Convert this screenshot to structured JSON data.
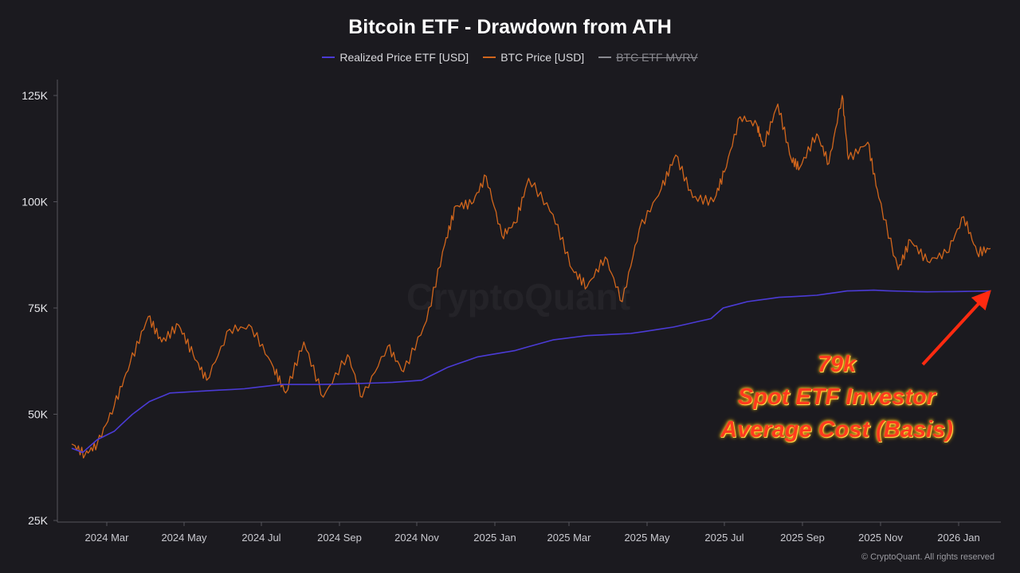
{
  "chart_data": {
    "type": "line",
    "title": "Bitcoin ETF - Drawdown from ATH",
    "legend": [
      {
        "name": "Realized Price ETF [USD]",
        "color": "#4b3bd6",
        "disabled": false
      },
      {
        "name": "BTC Price [USD]",
        "color": "#d2661c",
        "disabled": false
      },
      {
        "name": "BTC ETF MVRV",
        "color": "#8a8a90",
        "disabled": true
      }
    ],
    "x_labels": [
      "2024 Mar",
      "2024 May",
      "2024 Jul",
      "2024 Sep",
      "2024 Nov",
      "2025 Jan",
      "2025 Mar",
      "2025 May",
      "2025 Jul",
      "2025 Sep",
      "2025 Nov",
      "2026 Jan"
    ],
    "x_range": [
      "2024-01-11",
      "2026-02-05"
    ],
    "y_ticks": [
      "125K",
      "100K",
      "75K",
      "50K",
      "25K"
    ],
    "ylim": [
      25000,
      125000
    ],
    "series": [
      {
        "name": "Realized Price ETF [USD]",
        "color": "#4b3bd6",
        "points": [
          [
            "2024-01-11",
            42000
          ],
          [
            "2024-01-20",
            41000
          ],
          [
            "2024-02-01",
            44000
          ],
          [
            "2024-02-15",
            46000
          ],
          [
            "2024-03-01",
            50000
          ],
          [
            "2024-03-15",
            53000
          ],
          [
            "2024-04-01",
            55000
          ],
          [
            "2024-05-01",
            55500
          ],
          [
            "2024-06-01",
            56000
          ],
          [
            "2024-07-01",
            57000
          ],
          [
            "2024-08-01",
            57000
          ],
          [
            "2024-09-01",
            57200
          ],
          [
            "2024-10-01",
            57500
          ],
          [
            "2024-10-25",
            58000
          ],
          [
            "2024-11-15",
            61000
          ],
          [
            "2024-12-10",
            63500
          ],
          [
            "2025-01-10",
            65000
          ],
          [
            "2025-02-10",
            67500
          ],
          [
            "2025-03-10",
            68500
          ],
          [
            "2025-04-15",
            69000
          ],
          [
            "2025-05-20",
            70500
          ],
          [
            "2025-06-20",
            72500
          ],
          [
            "2025-06-30",
            75000
          ],
          [
            "2025-07-20",
            76500
          ],
          [
            "2025-08-15",
            77500
          ],
          [
            "2025-09-15",
            78000
          ],
          [
            "2025-10-10",
            79000
          ],
          [
            "2025-11-01",
            79200
          ],
          [
            "2025-11-15",
            79000
          ],
          [
            "2025-12-15",
            78800
          ],
          [
            "2026-01-15",
            78900
          ],
          [
            "2026-02-05",
            79000
          ]
        ]
      },
      {
        "name": "BTC Price [USD]",
        "color": "#d2661c",
        "points": [
          [
            "2024-01-11",
            43000
          ],
          [
            "2024-01-22",
            40500
          ],
          [
            "2024-02-01",
            43000
          ],
          [
            "2024-02-15",
            52000
          ],
          [
            "2024-02-28",
            62000
          ],
          [
            "2024-03-14",
            73000
          ],
          [
            "2024-03-25",
            67000
          ],
          [
            "2024-04-08",
            71000
          ],
          [
            "2024-04-20",
            64000
          ],
          [
            "2024-05-01",
            58000
          ],
          [
            "2024-05-20",
            70000
          ],
          [
            "2024-06-07",
            70500
          ],
          [
            "2024-06-25",
            61000
          ],
          [
            "2024-07-05",
            55000
          ],
          [
            "2024-07-20",
            67000
          ],
          [
            "2024-08-05",
            54000
          ],
          [
            "2024-08-25",
            64000
          ],
          [
            "2024-09-06",
            54000
          ],
          [
            "2024-09-27",
            66000
          ],
          [
            "2024-10-10",
            60000
          ],
          [
            "2024-10-29",
            72000
          ],
          [
            "2024-11-13",
            90000
          ],
          [
            "2024-11-22",
            99000
          ],
          [
            "2024-12-05",
            99500
          ],
          [
            "2024-12-17",
            106000
          ],
          [
            "2024-12-30",
            92000
          ],
          [
            "2025-01-10",
            95000
          ],
          [
            "2025-01-21",
            105500
          ],
          [
            "2025-02-10",
            97000
          ],
          [
            "2025-02-26",
            84000
          ],
          [
            "2025-03-10",
            80000
          ],
          [
            "2025-03-25",
            87000
          ],
          [
            "2025-04-08",
            76500
          ],
          [
            "2025-04-22",
            93500
          ],
          [
            "2025-05-10",
            103000
          ],
          [
            "2025-05-22",
            111000
          ],
          [
            "2025-06-05",
            101000
          ],
          [
            "2025-06-22",
            100000
          ],
          [
            "2025-07-01",
            107000
          ],
          [
            "2025-07-14",
            120000
          ],
          [
            "2025-07-28",
            118000
          ],
          [
            "2025-08-02",
            113000
          ],
          [
            "2025-08-14",
            123000
          ],
          [
            "2025-08-25",
            110000
          ],
          [
            "2025-09-01",
            108000
          ],
          [
            "2025-09-15",
            116000
          ],
          [
            "2025-09-25",
            109000
          ],
          [
            "2025-10-06",
            125000
          ],
          [
            "2025-10-11",
            110000
          ],
          [
            "2025-10-27",
            114000
          ],
          [
            "2025-11-05",
            101000
          ],
          [
            "2025-11-21",
            84000
          ],
          [
            "2025-12-01",
            91000
          ],
          [
            "2025-12-15",
            86000
          ],
          [
            "2025-12-31",
            88000
          ],
          [
            "2026-01-14",
            96500
          ],
          [
            "2026-01-25",
            88000
          ],
          [
            "2026-02-05",
            89000
          ]
        ]
      }
    ],
    "annotation": {
      "lines": [
        "79k",
        "Spot ETF Investor",
        "Average Cost (Basis)"
      ],
      "target_date": "2026-02-05",
      "target_value": 79000,
      "color": "#ff2a10"
    }
  },
  "watermark": "CryptoQuant",
  "copyright": "© CryptoQuant. All rights reserved"
}
